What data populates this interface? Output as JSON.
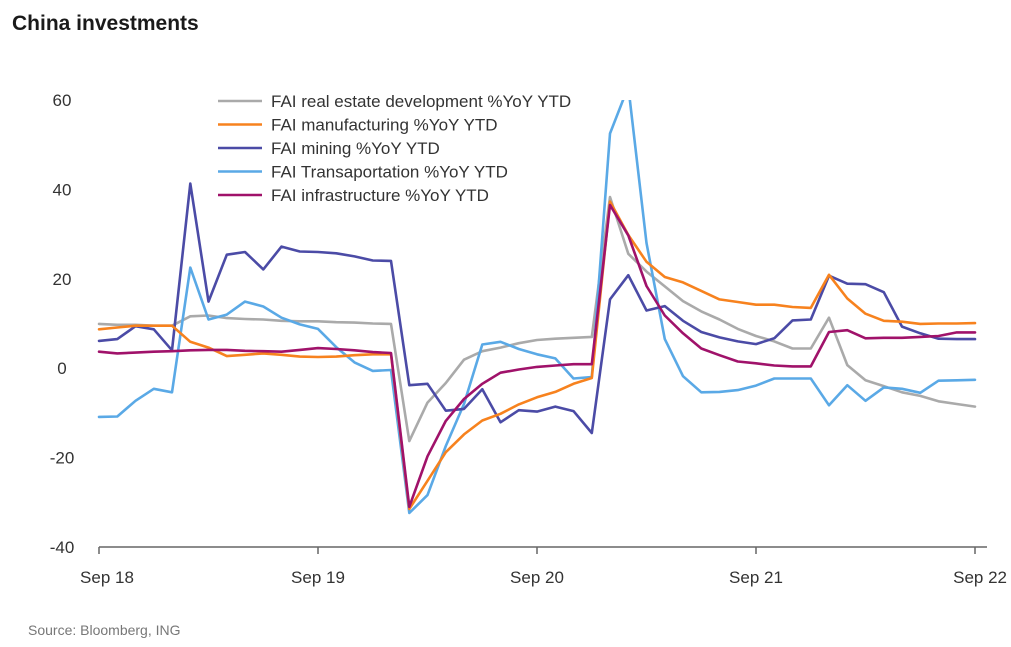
{
  "title": "China investments",
  "source": "Source: Bloomberg, ING",
  "chart_data": {
    "type": "line",
    "title": "China investments",
    "xlabel": "",
    "ylabel": "",
    "ylim": [
      -40,
      60
    ],
    "yticks": [
      -40,
      -20,
      0,
      20,
      40,
      60
    ],
    "x_labels": [
      "Sep 18",
      "Sep 19",
      "Sep 20",
      "Sep 21",
      "Sep 22"
    ],
    "x_label_months": [
      0,
      12,
      24,
      36,
      48
    ],
    "x": [
      0,
      1,
      2,
      3,
      4,
      5,
      6,
      7,
      8,
      9,
      10,
      11,
      12,
      13,
      14,
      15,
      16,
      17,
      18,
      19,
      20,
      21,
      22,
      23,
      24,
      25,
      26,
      27,
      28,
      29,
      30,
      31,
      32,
      33,
      34,
      35,
      36,
      37,
      38,
      39,
      40,
      41,
      42,
      43,
      44,
      45,
      46,
      47,
      48
    ],
    "legend_position": "top",
    "series": [
      {
        "name": "FAI real estate development %YoY YTD",
        "color": "#aaaaaa",
        "values": [
          9.9,
          9.7,
          9.7,
          9.5,
          9.5,
          11.6,
          11.8,
          11.2,
          11.0,
          10.9,
          10.6,
          10.5,
          10.5,
          10.3,
          10.2,
          10.0,
          9.9,
          -16.3,
          -7.7,
          -3.3,
          1.9,
          3.8,
          4.6,
          5.6,
          6.3,
          6.6,
          6.8,
          7.0,
          38.3,
          25.6,
          21.6,
          18.3,
          15.0,
          12.7,
          10.9,
          8.8,
          7.2,
          6.0,
          4.4,
          4.4,
          11.3,
          0.7,
          -2.7,
          -4.0,
          -5.4,
          -6.2,
          -7.4,
          -8.0,
          -8.6
        ],
        "legend_label": "FAI real estate development %YoY YTD"
      },
      {
        "name": "FAI manufacturing %YoY YTD",
        "color": "#f7821e",
        "values": [
          8.7,
          9.1,
          9.5,
          9.5,
          9.5,
          5.9,
          4.6,
          2.7,
          3.0,
          3.3,
          3.0,
          2.6,
          2.5,
          2.6,
          2.9,
          3.1,
          3.1,
          -31.5,
          -25.2,
          -18.8,
          -14.8,
          -11.7,
          -10.2,
          -8.1,
          -6.5,
          -5.3,
          -3.5,
          -2.2,
          37.3,
          29.8,
          23.8,
          20.4,
          19.2,
          17.3,
          15.4,
          14.8,
          14.2,
          14.2,
          13.7,
          13.5,
          20.9,
          15.6,
          12.2,
          10.6,
          10.4,
          9.9,
          10.0,
          10.0,
          10.1
        ],
        "legend_label": "FAI manufacturing %YoY YTD"
      },
      {
        "name": "FAI mining %YoY YTD",
        "color": "#4b4ba6",
        "values": [
          6.1,
          6.5,
          9.4,
          8.7,
          4.0,
          41.3,
          14.9,
          25.4,
          26.0,
          22.1,
          27.2,
          26.1,
          26.0,
          25.7,
          25.0,
          24.1,
          24.0,
          -3.8,
          -3.5,
          -9.5,
          -9.1,
          -4.7,
          -12.1,
          -9.4,
          -9.7,
          -8.6,
          -9.6,
          -14.5,
          15.4,
          20.8,
          12.9,
          13.9,
          10.6,
          8.1,
          6.9,
          6.0,
          5.4,
          6.7,
          10.7,
          10.9,
          20.7,
          18.9,
          18.8,
          17.0,
          9.3,
          7.8,
          6.6,
          6.5,
          6.5
        ],
        "legend_label": "FAI mining %YoY YTD"
      },
      {
        "name": "FAI Transaportation %YoY YTD",
        "color": "#5aa9e6",
        "values": [
          -10.9,
          -10.8,
          -7.3,
          -4.6,
          -5.4,
          22.5,
          10.9,
          12.0,
          14.9,
          13.8,
          11.3,
          9.8,
          8.8,
          4.7,
          1.3,
          -0.6,
          -0.4,
          -32.4,
          -28.4,
          -17.4,
          -8.0,
          5.3,
          5.9,
          4.3,
          3.1,
          2.2,
          -2.3,
          -2.0,
          52.5,
          63.0,
          28.0,
          6.5,
          -1.8,
          -5.4,
          -5.3,
          -4.9,
          -3.9,
          -2.3,
          -2.3,
          -2.3,
          -8.3,
          -3.8,
          -7.3,
          -4.3,
          -4.6,
          -5.5,
          -2.8,
          -2.7,
          -2.6
        ],
        "legend_label": "FAI Transaportation %YoY YTD"
      },
      {
        "name": "FAI infrastructure %YoY YTD",
        "color": "#a0126a",
        "values": [
          3.7,
          3.3,
          3.5,
          3.7,
          3.8,
          4.0,
          4.1,
          4.1,
          3.9,
          3.8,
          3.7,
          4.1,
          4.5,
          4.3,
          4.0,
          3.6,
          3.4,
          -31.0,
          -19.7,
          -11.8,
          -6.9,
          -3.5,
          -1.0,
          -0.3,
          0.3,
          0.6,
          0.9,
          0.9,
          36.5,
          29.7,
          18.4,
          11.8,
          7.8,
          4.4,
          2.9,
          1.5,
          1.1,
          0.6,
          0.4,
          0.4,
          8.1,
          8.5,
          6.7,
          6.8,
          6.8,
          7.0,
          7.2,
          8.0,
          8.0
        ],
        "legend_label": "FAI infrastructure %YoY YTD"
      }
    ]
  }
}
